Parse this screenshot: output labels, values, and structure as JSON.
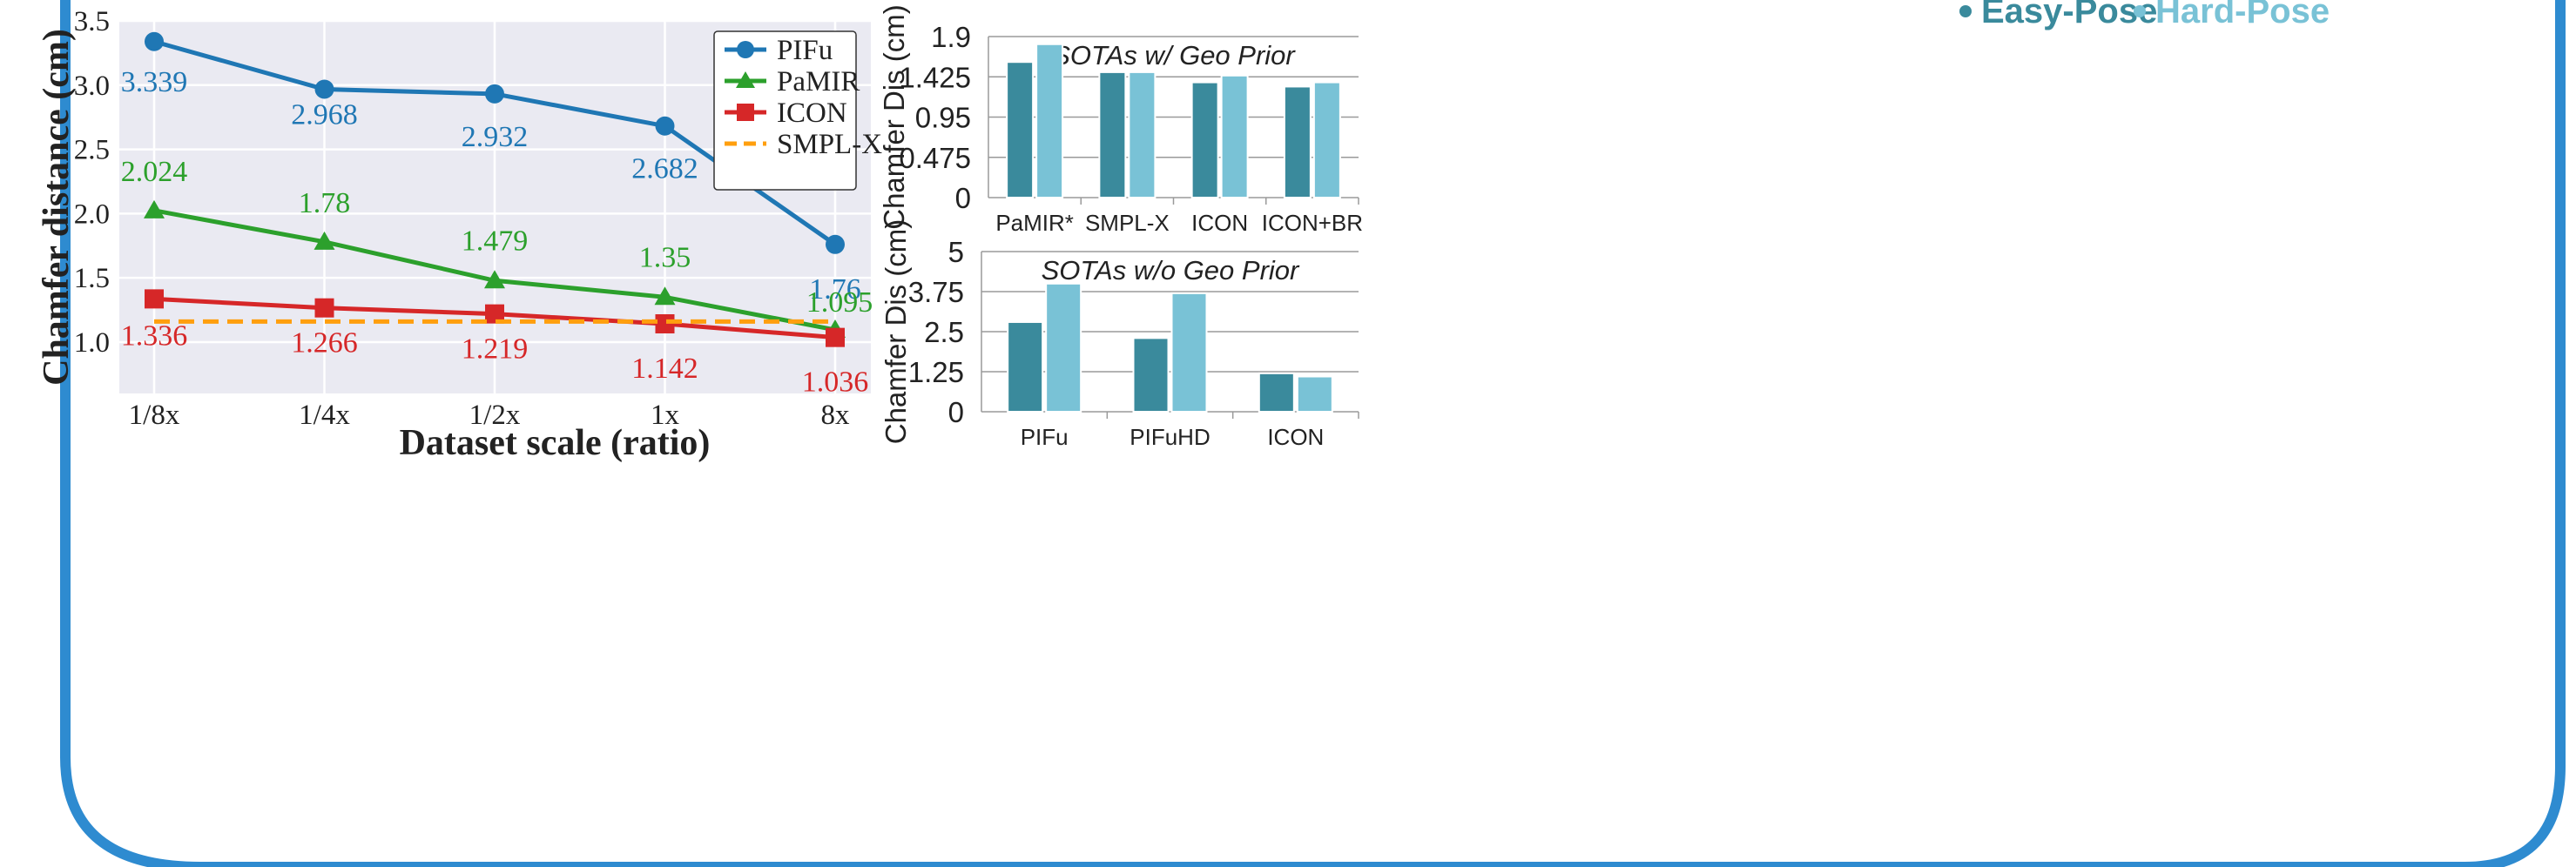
{
  "colors": {
    "frame": "#2e8bd0",
    "plot_bg": "#eaeaf2",
    "grid": "#ffffff",
    "pifu": "#1f77b4",
    "pamir": "#2ca02c",
    "icon": "#d62728",
    "smplx": "#ff9f0e",
    "easy": "#3a8a9c",
    "hard": "#79c2d6",
    "bar_legend": "#2b8aa6"
  },
  "chart_data": [
    {
      "type": "line",
      "title": "",
      "xlabel": "Dataset scale (ratio)",
      "ylabel": "Chamfer distance (cm)",
      "categories": [
        "1/8x",
        "1/4x",
        "1/2x",
        "1x",
        "8x"
      ],
      "yticks": [
        "1.0",
        "1.5",
        "2.0",
        "2.5",
        "3.0",
        "3.5"
      ],
      "ylim": [
        0.6,
        3.5
      ],
      "grid": true,
      "legend_position": "top-right",
      "series": [
        {
          "name": "PIFu",
          "marker": "circle",
          "values": [
            3.339,
            2.968,
            2.932,
            2.682,
            1.76
          ],
          "labels": [
            "3.339",
            "2.968",
            "2.932",
            "2.682",
            "1.76"
          ]
        },
        {
          "name": "PaMIR",
          "marker": "triangle",
          "values": [
            2.024,
            1.78,
            1.479,
            1.35,
            1.095
          ],
          "labels": [
            "2.024",
            "1.78",
            "1.479",
            "1.35",
            "1.095"
          ]
        },
        {
          "name": "ICON",
          "marker": "square",
          "values": [
            1.336,
            1.266,
            1.219,
            1.142,
            1.036
          ],
          "labels": [
            "1.336",
            "1.266",
            "1.219",
            "1.142",
            "1.036"
          ]
        },
        {
          "name": "SMPL-X",
          "marker": "none",
          "dashed": true,
          "values": [
            1.16,
            1.16,
            1.16,
            1.16,
            1.16
          ],
          "labels": []
        }
      ]
    },
    {
      "type": "bar",
      "title": "SOTAs w/ Geo Prior",
      "xlabel": "",
      "ylabel": "Chamfer Dis (cm)",
      "categories": [
        "PaMIR*",
        "SMPL-X",
        "ICON",
        "ICON+BR"
      ],
      "yticks": [
        "0",
        "0.475",
        "0.95",
        "1.425",
        "1.9"
      ],
      "ylim": [
        0,
        1.9
      ],
      "grid": true,
      "series": [
        {
          "name": "Easy-Pose",
          "values": [
            1.6,
            1.48,
            1.36,
            1.31
          ]
        },
        {
          "name": "Hard-Pose",
          "values": [
            1.81,
            1.48,
            1.44,
            1.36
          ]
        }
      ]
    },
    {
      "type": "bar",
      "title": "SOTAs w/o Geo Prior",
      "xlabel": "",
      "ylabel": "Chamfer Dis (cm)",
      "categories": [
        "PIFu",
        "PIFuHD",
        "ICON"
      ],
      "yticks": [
        "0",
        "1.25",
        "2.5",
        "3.75",
        "5"
      ],
      "ylim": [
        0,
        5
      ],
      "grid": true,
      "series": [
        {
          "name": "Easy-Pose",
          "values": [
            2.8,
            2.3,
            1.2
          ]
        },
        {
          "name": "Hard-Pose",
          "values": [
            4.0,
            3.7,
            1.1
          ]
        }
      ]
    }
  ],
  "bar_legend": [
    "Easy-Pose",
    "Hard-Pose"
  ]
}
